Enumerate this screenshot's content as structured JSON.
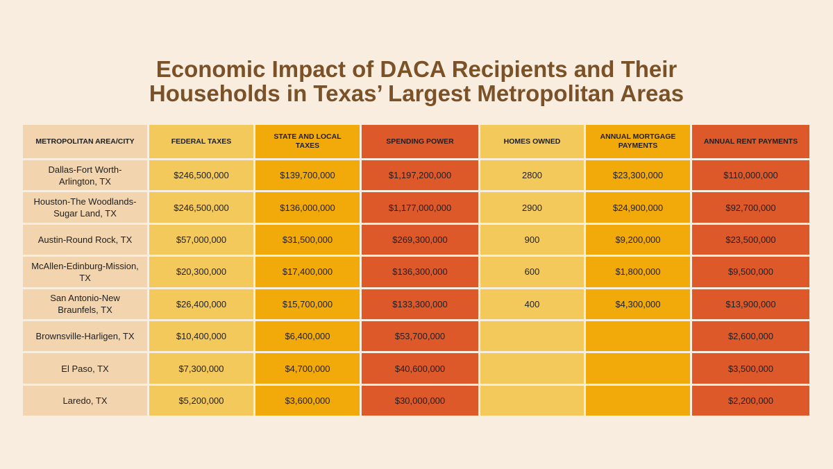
{
  "title": [
    "Economic Impact of DACA Recipients and Their",
    "Households in Texas’ Largest Metropolitan Areas"
  ],
  "table": {
    "header": [
      "METROPOLITAN AREA/CITY",
      "FEDERAL TAXES",
      "STATE AND LOCAL TAXES",
      "SPENDING POWER",
      "HOMES OWNED",
      "ANNUAL MORTGAGE PAYMENTS",
      "ANNUAL RENT PAYMENTS"
    ],
    "rows": [
      [
        "Dallas-Fort Worth-Arlington, TX",
        "$246,500,000",
        "$139,700,000",
        "$1,197,200,000",
        "2800",
        "$23,300,000",
        "$110,000,000"
      ],
      [
        "Houston-The Woodlands-Sugar Land, TX",
        "$246,500,000",
        "$136,000,000",
        "$1,177,000,000",
        "2900",
        "$24,900,000",
        "$92,700,000"
      ],
      [
        "Austin-Round Rock, TX",
        "$57,000,000",
        "$31,500,000",
        "$269,300,000",
        "900",
        "$9,200,000",
        "$23,500,000"
      ],
      [
        "McAllen-Edinburg-Mission, TX",
        "$20,300,000",
        "$17,400,000",
        "$136,300,000",
        "600",
        "$1,800,000",
        "$9,500,000"
      ],
      [
        "San Antonio-New Braunfels, TX",
        "$26,400,000",
        "$15,700,000",
        "$133,300,000",
        "400",
        "$4,300,000",
        "$13,900,000"
      ],
      [
        "Brownsville-Harligen, TX",
        "$10,400,000",
        "$6,400,000",
        "$53,700,000",
        null,
        null,
        "$2,600,000"
      ],
      [
        "El Paso, TX",
        "$7,300,000",
        "$4,700,000",
        "$40,600,000",
        null,
        null,
        "$3,500,000"
      ],
      [
        "Laredo, TX",
        "$5,200,000",
        "$3,600,000",
        "$30,000,000",
        null,
        null,
        "$2,200,000"
      ]
    ]
  }
}
